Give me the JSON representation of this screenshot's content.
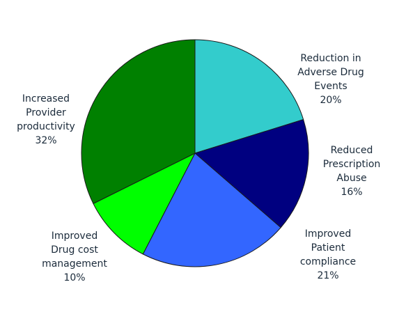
{
  "chart_data": {
    "type": "pie",
    "start_angle_deg": 0,
    "direction": "clockwise",
    "slices": [
      {
        "name": "Reduction in Adverse Drug Events",
        "value": 20,
        "value_label": "20%",
        "label_lines": [
          "Reduction in",
          "Adverse Drug",
          "Events"
        ],
        "color": "#33CCCC"
      },
      {
        "name": "Reduced Prescription Abuse",
        "value": 16,
        "value_label": "16%",
        "label_lines": [
          "Reduced",
          "Prescription",
          "Abuse"
        ],
        "color": "#000080"
      },
      {
        "name": "Improved Patient compliance",
        "value": 21,
        "value_label": "21%",
        "label_lines": [
          "Improved",
          "Patient",
          "compliance"
        ],
        "color": "#3366FF"
      },
      {
        "name": "Improved Drug cost management",
        "value": 10,
        "value_label": "10%",
        "label_lines": [
          "Improved",
          "Drug cost",
          "management"
        ],
        "color": "#00FF00"
      },
      {
        "name": "Increased Provider productivity",
        "value": 32,
        "value_label": "32%",
        "label_lines": [
          "Increased",
          "Provider",
          "productivity"
        ],
        "color": "#008000"
      }
    ]
  }
}
